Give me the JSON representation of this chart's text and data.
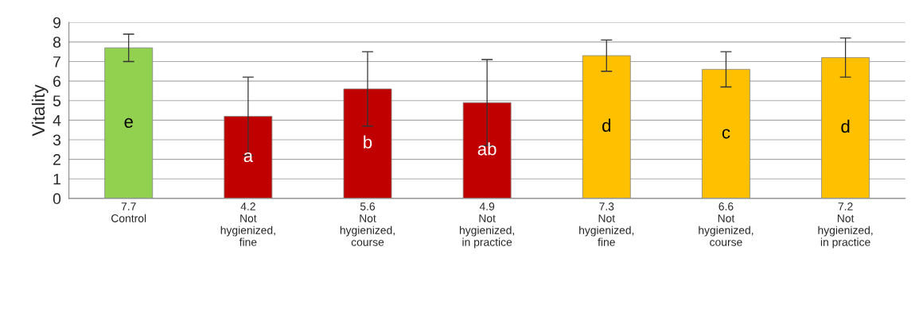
{
  "chart_data": {
    "type": "bar",
    "ylabel": "Vitality",
    "categories": [
      "Control",
      "Not\nhygienized,\nfine",
      "Not\nhygienized,\ncourse",
      "Not\nhygienized,\nin practice",
      "Not\nhygienized,\nfine",
      "Not\nhygienized,\ncourse",
      "Not\nhygienized,\nin practice"
    ],
    "values": [
      7.7,
      4.2,
      5.6,
      4.9,
      7.3,
      6.6,
      7.2
    ],
    "value_labels": [
      "7.7",
      "4.2",
      "5.6",
      "4.9",
      "7.3",
      "6.6",
      "7.2"
    ],
    "errors": [
      0.7,
      2.0,
      1.9,
      2.2,
      0.8,
      0.9,
      1.0
    ],
    "colors": [
      "#92d050",
      "#c00000",
      "#c00000",
      "#c00000",
      "#ffc000",
      "#ffc000",
      "#ffc000"
    ],
    "annotations": [
      "e",
      "a",
      "b",
      "ab",
      "d",
      "c",
      "d"
    ],
    "ylim": [
      0,
      9
    ],
    "yticks": [
      0,
      1,
      2,
      3,
      4,
      5,
      6,
      7,
      8,
      9
    ],
    "grid": "y",
    "legend": false
  }
}
